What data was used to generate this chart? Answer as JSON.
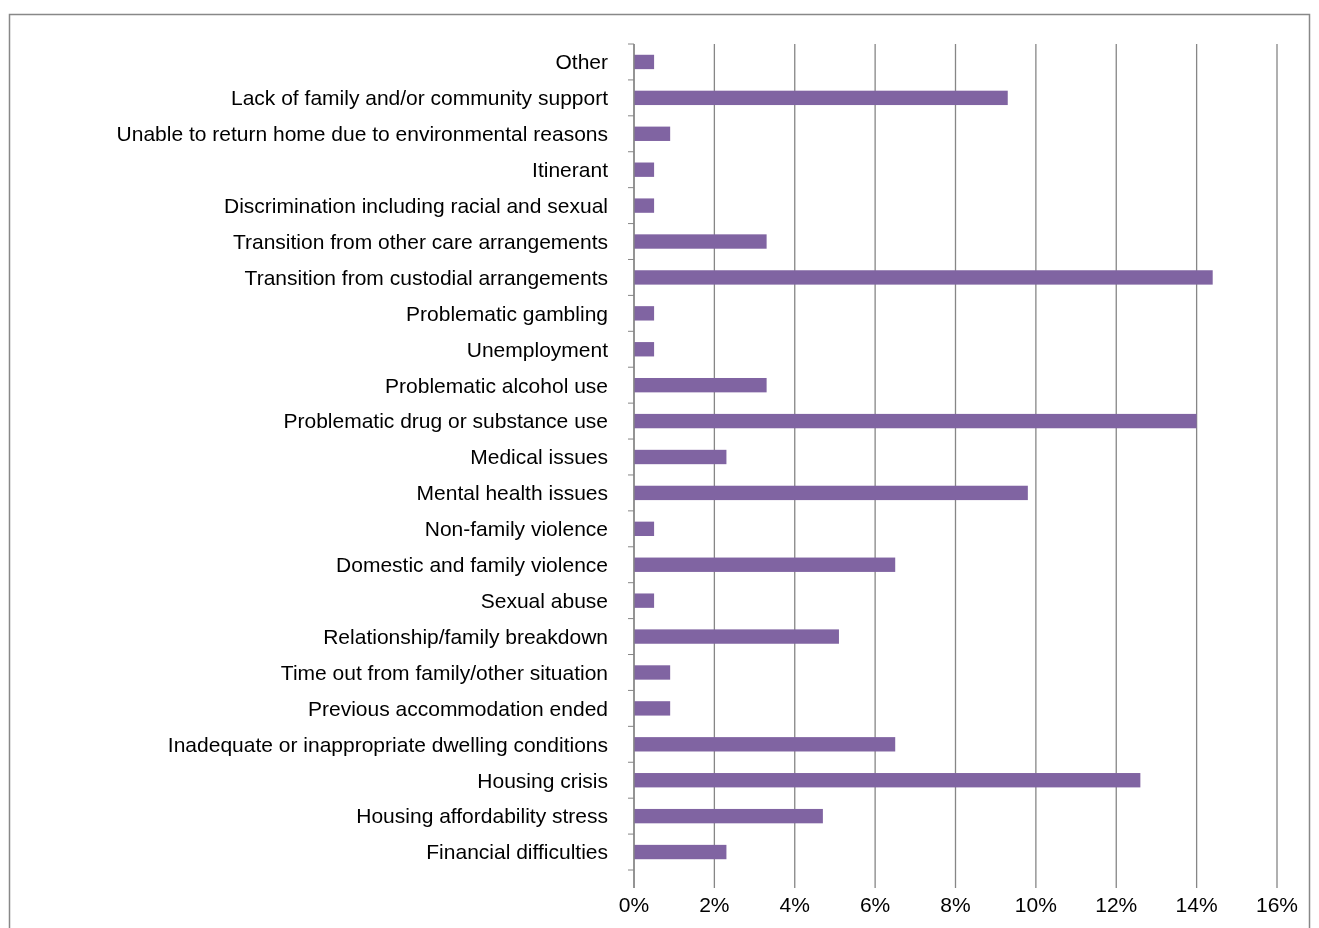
{
  "chart_data": {
    "type": "bar",
    "orientation": "horizontal",
    "categories": [
      "Other",
      "Lack of family and/or community support",
      "Unable to return home due to environmental reasons",
      "Itinerant",
      "Discrimination including racial and sexual",
      "Transition from other care arrangements",
      "Transition from custodial arrangements",
      "Problematic gambling",
      "Unemployment",
      "Problematic alcohol use",
      "Problematic drug or substance use",
      "Medical issues",
      "Mental health issues",
      "Non-family violence",
      "Domestic and family violence",
      "Sexual abuse",
      "Relationship/family breakdown",
      "Time out from family/other situation",
      "Previous accommodation ended",
      "Inadequate or inappropriate dwelling conditions",
      "Housing crisis",
      "Housing affordability stress",
      "Financial difficulties"
    ],
    "values": [
      0.5,
      9.3,
      0.9,
      0.5,
      0.5,
      3.3,
      14.4,
      0.5,
      0.5,
      3.3,
      14.0,
      2.3,
      9.8,
      0.5,
      6.5,
      0.5,
      5.1,
      0.9,
      0.9,
      6.5,
      12.6,
      4.7,
      2.3
    ],
    "color": "#8064a2",
    "xlim": [
      0,
      16
    ],
    "xticks": [
      {
        "value": 0,
        "label": "0%"
      },
      {
        "value": 2,
        "label": "2%"
      },
      {
        "value": 4,
        "label": "4%"
      },
      {
        "value": 6,
        "label": "6%"
      },
      {
        "value": 8,
        "label": "8%"
      },
      {
        "value": 10,
        "label": "10%"
      },
      {
        "value": 12,
        "label": "12%"
      },
      {
        "value": 14,
        "label": "14%"
      },
      {
        "value": 16,
        "label": "16%"
      }
    ],
    "grid": "x"
  }
}
